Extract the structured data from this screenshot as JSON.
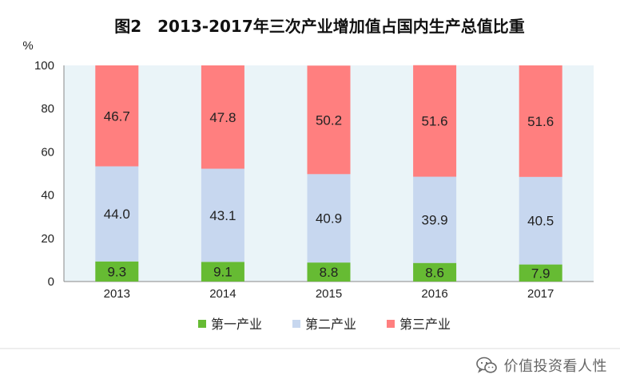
{
  "chart_data": {
    "type": "bar",
    "stacked": true,
    "title": "图2　2013-2017年三次产业增加值占国内生产总值比重",
    "ylabel": "%",
    "ylim": [
      0,
      100
    ],
    "yticks": [
      0,
      20,
      40,
      60,
      80,
      100
    ],
    "categories": [
      "2013",
      "2014",
      "2015",
      "2016",
      "2017"
    ],
    "series": [
      {
        "name": "第一产业",
        "color": "#66bb33",
        "values": [
          9.3,
          9.1,
          8.8,
          8.6,
          7.9
        ]
      },
      {
        "name": "第二产业",
        "color": "#c7d7ef",
        "values": [
          44.0,
          43.1,
          40.9,
          39.9,
          40.5
        ]
      },
      {
        "name": "第三产业",
        "color": "#ff7f7f",
        "values": [
          46.7,
          47.8,
          50.2,
          51.6,
          51.6
        ]
      }
    ],
    "grid": false,
    "legend": "bottom"
  },
  "watermark": {
    "text": "价值投资看人性",
    "icon": "wechat-icon"
  }
}
